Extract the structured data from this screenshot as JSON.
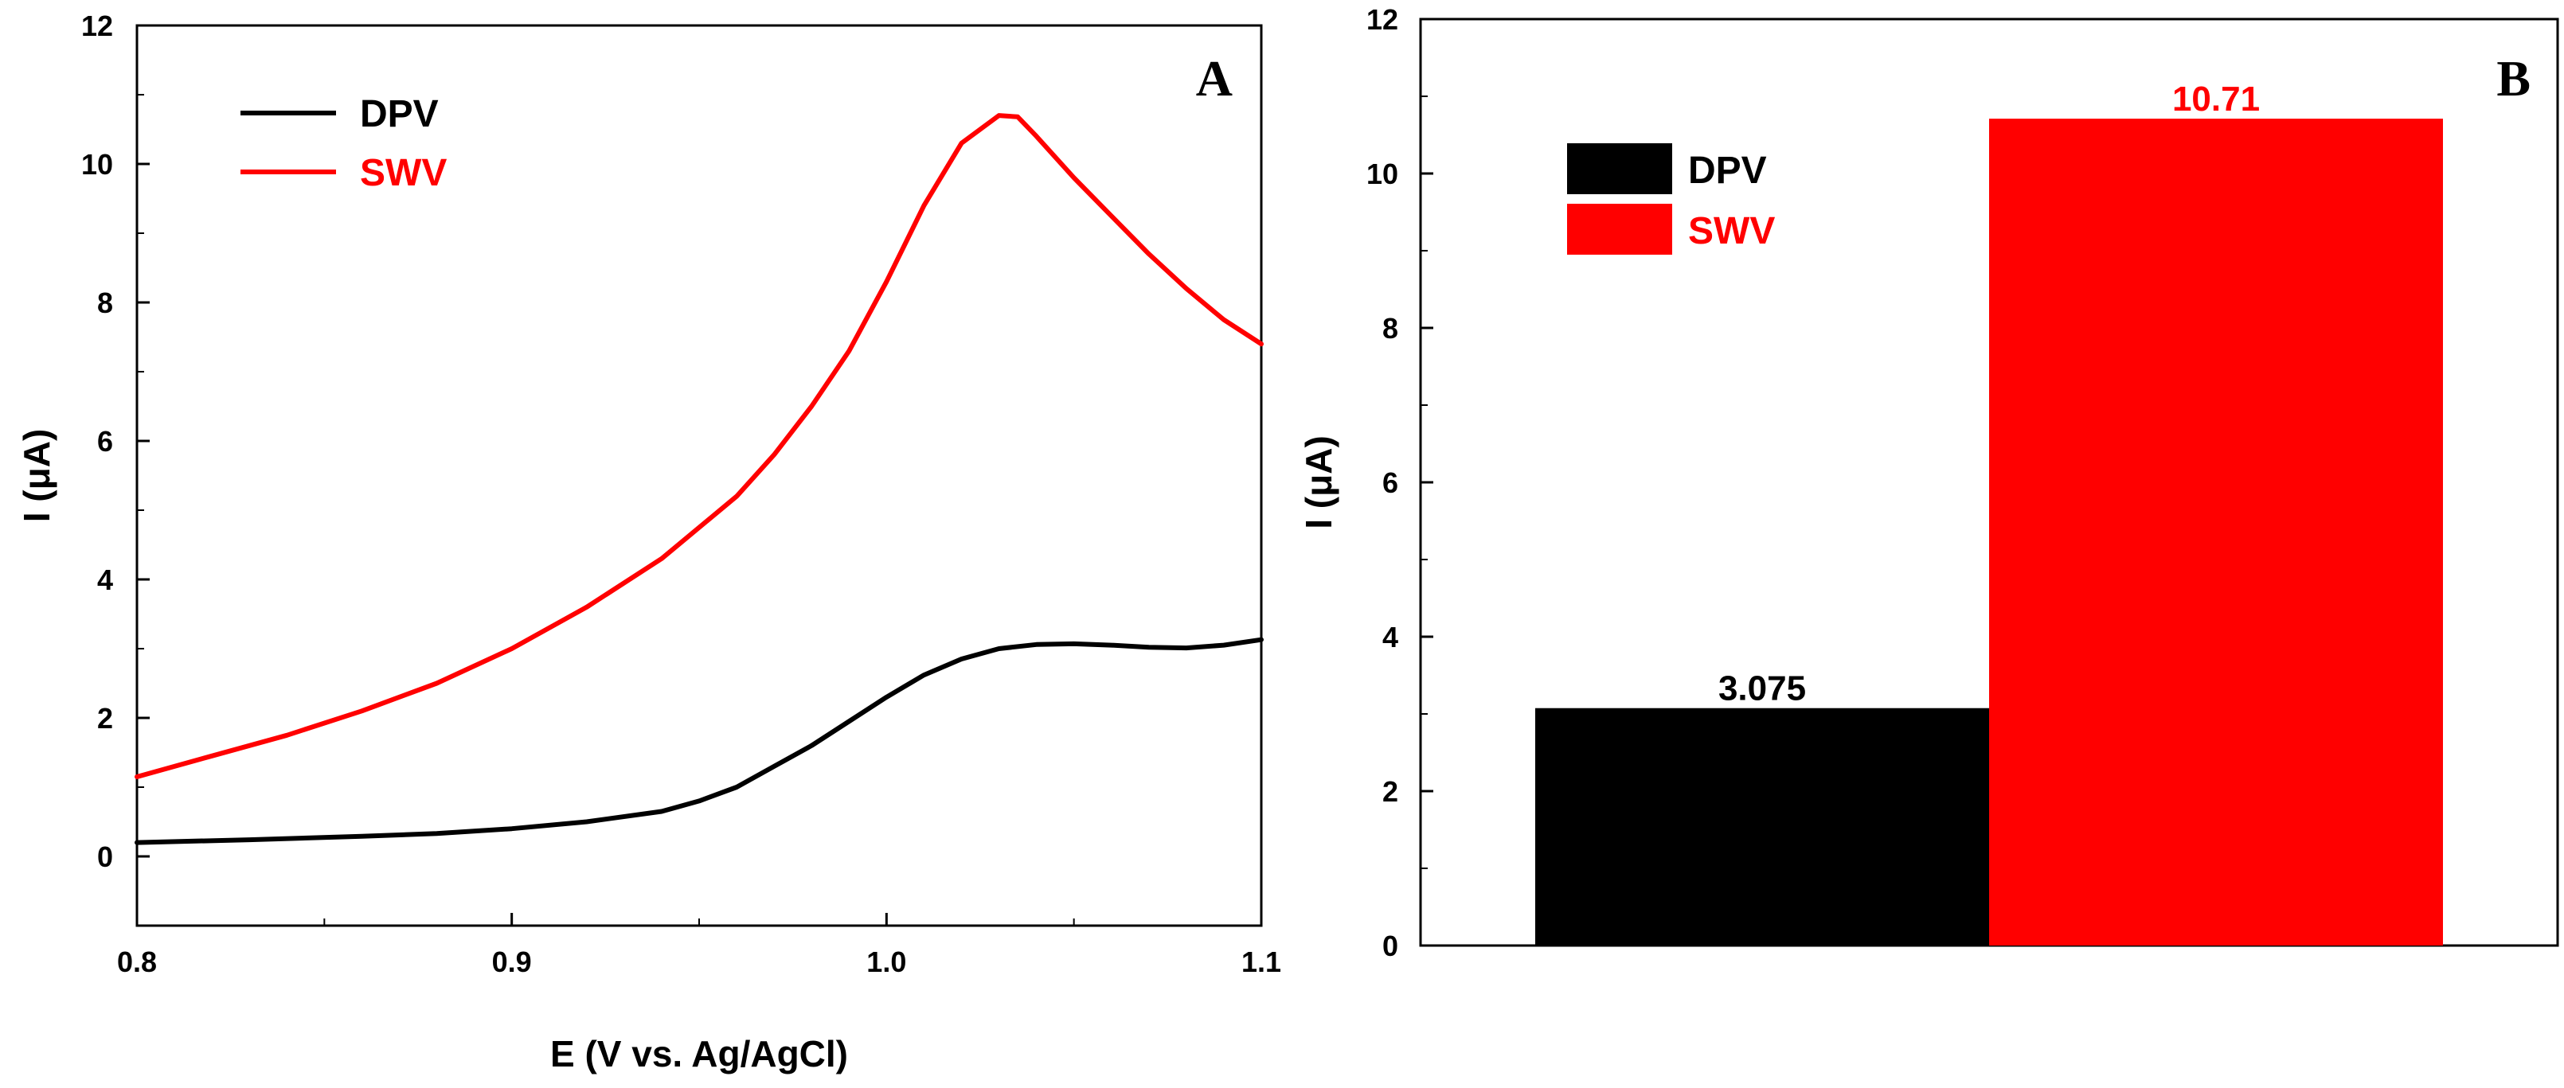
{
  "chart_data": [
    {
      "type": "line",
      "panel_label": "A",
      "xlabel": "E (V vs. Ag/AgCl)",
      "ylabel": "I (μA)",
      "xlim": [
        0.8,
        1.1
      ],
      "ylim": [
        -1,
        12
      ],
      "x_ticks": [
        "0.8",
        "0.9",
        "1.0",
        "1.1"
      ],
      "y_ticks": [
        "0",
        "2",
        "4",
        "6",
        "8",
        "10",
        "12"
      ],
      "legend_position": "top-left",
      "series": [
        {
          "name": "DPV",
          "color": "#000000",
          "points": [
            [
              0.8,
              0.2
            ],
            [
              0.83,
              0.24
            ],
            [
              0.86,
              0.29
            ],
            [
              0.88,
              0.33
            ],
            [
              0.9,
              0.4
            ],
            [
              0.92,
              0.5
            ],
            [
              0.94,
              0.65
            ],
            [
              0.95,
              0.8
            ],
            [
              0.96,
              1.0
            ],
            [
              0.97,
              1.3
            ],
            [
              0.98,
              1.6
            ],
            [
              0.99,
              1.95
            ],
            [
              1.0,
              2.3
            ],
            [
              1.01,
              2.62
            ],
            [
              1.02,
              2.85
            ],
            [
              1.03,
              3.0
            ],
            [
              1.04,
              3.06
            ],
            [
              1.05,
              3.07
            ],
            [
              1.06,
              3.05
            ],
            [
              1.07,
              3.02
            ],
            [
              1.08,
              3.01
            ],
            [
              1.09,
              3.05
            ],
            [
              1.1,
              3.13
            ]
          ]
        },
        {
          "name": "SWV",
          "color": "#ff0000",
          "points": [
            [
              0.8,
              1.15
            ],
            [
              0.82,
              1.45
            ],
            [
              0.84,
              1.75
            ],
            [
              0.86,
              2.1
            ],
            [
              0.88,
              2.5
            ],
            [
              0.9,
              3.0
            ],
            [
              0.92,
              3.6
            ],
            [
              0.94,
              4.3
            ],
            [
              0.96,
              5.2
            ],
            [
              0.97,
              5.8
            ],
            [
              0.98,
              6.5
            ],
            [
              0.99,
              7.3
            ],
            [
              1.0,
              8.3
            ],
            [
              1.01,
              9.4
            ],
            [
              1.02,
              10.3
            ],
            [
              1.03,
              10.7
            ],
            [
              1.035,
              10.68
            ],
            [
              1.04,
              10.4
            ],
            [
              1.05,
              9.8
            ],
            [
              1.06,
              9.25
            ],
            [
              1.07,
              8.7
            ],
            [
              1.08,
              8.2
            ],
            [
              1.09,
              7.75
            ],
            [
              1.1,
              7.4
            ]
          ]
        }
      ]
    },
    {
      "type": "bar",
      "panel_label": "B",
      "xlabel": "",
      "ylabel": "I (μA)",
      "ylim": [
        0,
        12
      ],
      "y_ticks": [
        "0",
        "2",
        "4",
        "6",
        "8",
        "10",
        "12"
      ],
      "legend_position": "top-left",
      "categories": [
        "DPV",
        "SWV"
      ],
      "values": [
        3.075,
        10.71
      ],
      "value_labels": [
        "3.075",
        "10.71"
      ],
      "colors": [
        "#000000",
        "#ff0000"
      ],
      "label_colors": [
        "#000000",
        "#ff0000"
      ]
    }
  ]
}
